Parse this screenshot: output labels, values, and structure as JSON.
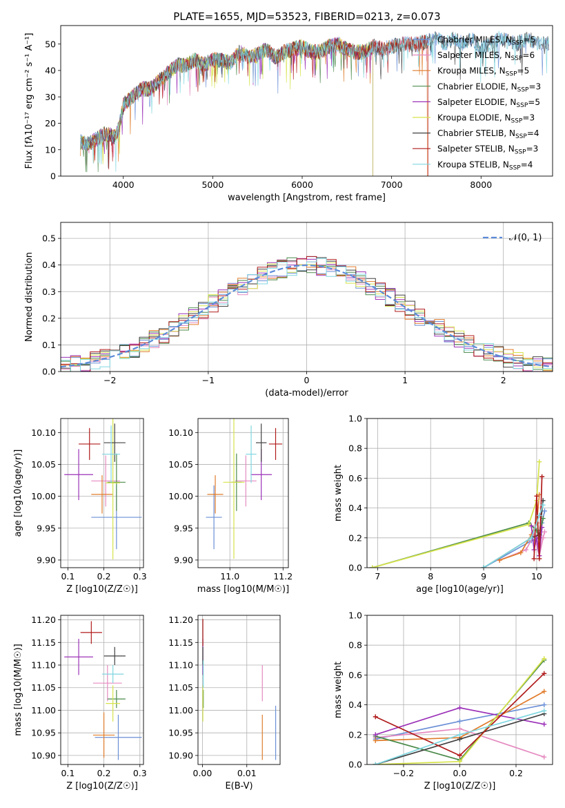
{
  "chart_data": [
    {
      "type": "line",
      "title": "PLATE=1655, MJD=53523, FIBERID=0213, z=0.073",
      "xlabel": "wavelength [Angstrom, rest frame]",
      "ylabel": "Flux [fλ10⁻¹⁷ erg cm⁻² s⁻¹ A⁻¹]",
      "xlim": [
        3300,
        8800
      ],
      "ylim": [
        0,
        57
      ],
      "xticks": [
        "4000",
        "5000",
        "6000",
        "7000",
        "8000"
      ],
      "yticks": [
        "0",
        "10",
        "20",
        "30",
        "40",
        "50"
      ],
      "legend_position": "upper-right",
      "spectrum": {
        "x": [
          3520,
          3600,
          3700,
          3800,
          3900,
          3950,
          4000,
          4100,
          4200,
          4300,
          4400,
          4500,
          4600,
          4700,
          4800,
          4900,
          5000,
          5100,
          5200,
          5300,
          5400,
          5500,
          5600,
          5700,
          5800,
          5900,
          6000,
          6100,
          6200,
          6300,
          6400,
          6500,
          6600,
          6700,
          6800,
          6900,
          7000,
          7100,
          7200,
          7300,
          7400,
          7500,
          7600,
          7700,
          7800,
          7900,
          8000,
          8100,
          8200,
          8300,
          8400,
          8500,
          8600,
          8700,
          8760
        ],
        "y": [
          13,
          12,
          14,
          16,
          15,
          18,
          27,
          30,
          33,
          33,
          36,
          39,
          42,
          42,
          44,
          42,
          44,
          44,
          43,
          47,
          45,
          46,
          48,
          45,
          47,
          48,
          49,
          47,
          47,
          49,
          50,
          48,
          47,
          47,
          49,
          48,
          49,
          50,
          50,
          50,
          51,
          52,
          50,
          52,
          50,
          52,
          48,
          50,
          52,
          51,
          50,
          52,
          51,
          50,
          50
        ]
      },
      "series": [
        {
          "name": "Chabrier MILES, N_SSP=5",
          "color": "#6a8fd6",
          "end_x": 8760
        },
        {
          "name": "Salpeter MILES, N_SSP=6",
          "color": "#e58ac0",
          "end_x": 7400
        },
        {
          "name": "Kroupa MILES, N_SSP=5",
          "color": "#e07b2a",
          "end_x": 7400
        },
        {
          "name": "Chabrier ELODIE, N_SSP=3",
          "color": "#4a8a4a",
          "end_x": 6790
        },
        {
          "name": "Salpeter ELODIE, N_SSP=5",
          "color": "#9b30b8",
          "end_x": 6790
        },
        {
          "name": "Kroupa ELODIE, N_SSP=3",
          "color": "#d6e34a",
          "end_x": 6790
        },
        {
          "name": "Chabrier STELIB, N_SSP=4",
          "color": "#404040",
          "end_x": 8760
        },
        {
          "name": "Salpeter STELIB, N_SSP=3",
          "color": "#b01a1a",
          "end_x": 7410
        },
        {
          "name": "Kroupa STELIB, N_SSP=4",
          "color": "#7fd6e0",
          "end_x": 8760
        }
      ],
      "legend_labels": [
        {
          "base": "Chabrier MILES, N",
          "sub": "SSP",
          "tail": "=5"
        },
        {
          "base": "Salpeter MILES, N",
          "sub": "SSP",
          "tail": "=6"
        },
        {
          "base": "Kroupa MILES, N",
          "sub": "SSP",
          "tail": "=5"
        },
        {
          "base": "Chabrier ELODIE, N",
          "sub": "SSP",
          "tail": "=3"
        },
        {
          "base": "Salpeter ELODIE, N",
          "sub": "SSP",
          "tail": "=5"
        },
        {
          "base": "Kroupa ELODIE, N",
          "sub": "SSP",
          "tail": "=3"
        },
        {
          "base": "Chabrier STELIB, N",
          "sub": "SSP",
          "tail": "=4"
        },
        {
          "base": "Salpeter STELIB, N",
          "sub": "SSP",
          "tail": "=3"
        },
        {
          "base": "Kroupa STELIB, N",
          "sub": "SSP",
          "tail": "=4"
        }
      ]
    },
    {
      "type": "line",
      "xlabel": "(data-model)/error",
      "ylabel": "Normed distribution",
      "xlim": [
        -2.5,
        2.5
      ],
      "ylim": [
        0,
        0.56
      ],
      "xticks": [
        "−2",
        "−1",
        "0",
        "1",
        "2"
      ],
      "yticks": [
        "0.0",
        "0.1",
        "0.2",
        "0.3",
        "0.4",
        "0.5"
      ],
      "grid": true,
      "legend_position": "upper-right",
      "reference_curve": {
        "name": "𝒩(0, 1)",
        "mean": 0,
        "sigma": 1,
        "color": "#5b8ad8",
        "style": "dashed"
      },
      "histogram_note": "9 step histograms (one per model), bin width 0.1, following N(0,1) with scatter"
    },
    {
      "type": "scatter",
      "xlabel": "Z [log10(Z/Z☉)]",
      "ylabel": "age  [log10(age/yr)]",
      "xlim": [
        0.08,
        0.31
      ],
      "ylim": [
        9.888,
        10.122
      ],
      "xticks": [
        "0.1",
        "0.2",
        "0.3"
      ],
      "yticks": [
        "9.90",
        "9.95",
        "10.00",
        "10.05",
        "10.10"
      ],
      "grid": true,
      "points": [
        {
          "x": 0.235,
          "y": 9.967,
          "xerr": 0.07,
          "yerr": 0.05,
          "color": "#6a8fd6"
        },
        {
          "x": 0.205,
          "y": 10.024,
          "xerr": 0.04,
          "yerr": 0.04,
          "color": "#e58ac0"
        },
        {
          "x": 0.195,
          "y": 10.003,
          "xerr": 0.03,
          "yerr": 0.03,
          "color": "#e07b2a"
        },
        {
          "x": 0.235,
          "y": 10.022,
          "xerr": 0.025,
          "yerr": 0.045,
          "color": "#4a8a4a"
        },
        {
          "x": 0.13,
          "y": 10.034,
          "xerr": 0.04,
          "yerr": 0.04,
          "color": "#9b30b8"
        },
        {
          "x": 0.225,
          "y": 10.021,
          "xerr": 0.02,
          "yerr": 0.12,
          "color": "#d6e34a"
        },
        {
          "x": 0.23,
          "y": 10.084,
          "xerr": 0.03,
          "yerr": 0.03,
          "color": "#404040"
        },
        {
          "x": 0.16,
          "y": 10.082,
          "xerr": 0.03,
          "yerr": 0.025,
          "color": "#b01a1a"
        },
        {
          "x": 0.22,
          "y": 10.066,
          "xerr": 0.025,
          "yerr": 0.045,
          "color": "#7fd6e0"
        }
      ]
    },
    {
      "type": "scatter",
      "xlabel": "mass [log10(M/M☉)]",
      "xlim": [
        10.88,
        11.22
      ],
      "ylim": [
        9.888,
        10.122
      ],
      "xticks": [
        "11.0",
        "11.2"
      ],
      "yticks": [
        "9.90",
        "9.95",
        "10.00",
        "10.05",
        "10.10"
      ],
      "grid": true,
      "points": [
        {
          "x": 10.94,
          "y": 9.967,
          "xerr": 0.03,
          "yerr": 0.05,
          "color": "#6a8fd6"
        },
        {
          "x": 11.06,
          "y": 10.024,
          "xerr": 0.04,
          "yerr": 0.04,
          "color": "#e58ac0"
        },
        {
          "x": 10.945,
          "y": 10.003,
          "xerr": 0.03,
          "yerr": 0.03,
          "color": "#e07b2a"
        },
        {
          "x": 11.025,
          "y": 10.022,
          "xerr": 0.02,
          "yerr": 0.045,
          "color": "#4a8a4a"
        },
        {
          "x": 11.118,
          "y": 10.034,
          "xerr": 0.04,
          "yerr": 0.04,
          "color": "#9b30b8"
        },
        {
          "x": 11.015,
          "y": 10.022,
          "xerr": 0.04,
          "yerr": 0.12,
          "color": "#d6e34a"
        },
        {
          "x": 11.118,
          "y": 10.084,
          "xerr": 0.02,
          "yerr": 0.03,
          "color": "#404040"
        },
        {
          "x": 11.172,
          "y": 10.082,
          "xerr": 0.025,
          "yerr": 0.025,
          "color": "#b01a1a"
        },
        {
          "x": 11.08,
          "y": 10.066,
          "xerr": 0.02,
          "yerr": 0.045,
          "color": "#7fd6e0"
        }
      ]
    },
    {
      "type": "line",
      "xlabel": "age  [log10(age/yr)]",
      "ylabel": "mass weight",
      "xlim": [
        6.8,
        10.3
      ],
      "ylim": [
        0,
        1
      ],
      "xticks": [
        "7",
        "8",
        "9",
        "10"
      ],
      "yticks": [
        "0.0",
        "0.2",
        "0.4",
        "0.6",
        "0.8",
        "1.0"
      ],
      "grid": true,
      "series": [
        {
          "color": "#6a8fd6",
          "x": [
            9.0,
            9.9,
            10.05,
            10.1,
            10.15
          ],
          "y": [
            0.0,
            0.18,
            0.2,
            0.3,
            0.38
          ]
        },
        {
          "color": "#e58ac0",
          "x": [
            9.3,
            9.8,
            9.95,
            10.05,
            10.12,
            10.15
          ],
          "y": [
            0.05,
            0.12,
            0.22,
            0.08,
            0.2,
            0.24
          ]
        },
        {
          "color": "#e07b2a",
          "x": [
            9.3,
            9.7,
            9.9,
            10.0,
            10.05
          ],
          "y": [
            0.05,
            0.1,
            0.22,
            0.3,
            0.49
          ]
        },
        {
          "color": "#4a8a4a",
          "x": [
            6.9,
            9.85,
            10.0,
            10.05,
            10.12
          ],
          "y": [
            0.0,
            0.3,
            0.25,
            0.2,
            0.33
          ]
        },
        {
          "color": "#9b30b8",
          "x": [
            9.9,
            9.95,
            10.0,
            10.05,
            10.1
          ],
          "y": [
            0.28,
            0.12,
            0.2,
            0.08,
            0.27
          ]
        },
        {
          "color": "#d6e34a",
          "x": [
            6.9,
            9.85,
            10.0,
            10.05
          ],
          "y": [
            0.0,
            0.29,
            0.45,
            0.71
          ]
        },
        {
          "color": "#404040",
          "x": [
            9.0,
            9.9,
            10.05,
            10.12
          ],
          "y": [
            0.0,
            0.2,
            0.22,
            0.45
          ]
        },
        {
          "color": "#b01a1a",
          "x": [
            9.95,
            10.0,
            10.05,
            10.1
          ],
          "y": [
            0.06,
            0.48,
            0.06,
            0.61
          ]
        },
        {
          "color": "#7fd6e0",
          "x": [
            9.0,
            9.9,
            10.05,
            10.12
          ],
          "y": [
            0.0,
            0.2,
            0.35,
            0.42
          ]
        }
      ]
    },
    {
      "type": "scatter",
      "xlabel": "Z [log10(Z/Z☉)]",
      "ylabel": "mass [log10(M/M☉)]",
      "xlim": [
        0.08,
        0.31
      ],
      "ylim": [
        10.88,
        11.21
      ],
      "xticks": [
        "0.1",
        "0.2",
        "0.3"
      ],
      "yticks": [
        "10.90",
        "10.95",
        "11.00",
        "11.05",
        "11.10",
        "11.15",
        "11.20"
      ],
      "grid": true,
      "points": [
        {
          "x": 0.24,
          "y": 10.94,
          "xerr": 0.065,
          "yerr": 0.05,
          "color": "#6a8fd6"
        },
        {
          "x": 0.21,
          "y": 11.06,
          "xerr": 0.04,
          "yerr": 0.04,
          "color": "#e58ac0"
        },
        {
          "x": 0.2,
          "y": 10.945,
          "xerr": 0.03,
          "yerr": 0.05,
          "color": "#e07b2a"
        },
        {
          "x": 0.235,
          "y": 11.025,
          "xerr": 0.025,
          "yerr": 0.02,
          "color": "#4a8a4a"
        },
        {
          "x": 0.13,
          "y": 11.118,
          "xerr": 0.04,
          "yerr": 0.04,
          "color": "#9b30b8"
        },
        {
          "x": 0.225,
          "y": 11.015,
          "xerr": 0.02,
          "yerr": 0.04,
          "color": "#d6e34a"
        },
        {
          "x": 0.23,
          "y": 11.12,
          "xerr": 0.03,
          "yerr": 0.02,
          "color": "#404040"
        },
        {
          "x": 0.165,
          "y": 11.172,
          "xerr": 0.03,
          "yerr": 0.025,
          "color": "#b01a1a"
        },
        {
          "x": 0.225,
          "y": 11.08,
          "xerr": 0.03,
          "yerr": 0.02,
          "color": "#7fd6e0"
        }
      ]
    },
    {
      "type": "scatter",
      "xlabel": "E(B-V)",
      "xlim": [
        -0.001,
        0.0175
      ],
      "ylim": [
        10.88,
        11.21
      ],
      "xticks": [
        "0.00",
        "0.01"
      ],
      "yticks": [
        "10.90",
        "10.95",
        "11.00",
        "11.05",
        "11.10",
        "11.15",
        "11.20"
      ],
      "grid": true,
      "points": [
        {
          "x": 0.0165,
          "y": 10.95,
          "yerr": 0.06,
          "color": "#6a8fd6"
        },
        {
          "x": 0.0135,
          "y": 11.06,
          "yerr": 0.04,
          "color": "#e58ac0"
        },
        {
          "x": 0.0135,
          "y": 10.94,
          "yerr": 0.05,
          "color": "#e07b2a"
        },
        {
          "x": 0.0002,
          "y": 11.025,
          "yerr": 0.02,
          "color": "#4a8a4a"
        },
        {
          "x": 0.0001,
          "y": 11.118,
          "yerr": 0.04,
          "color": "#9b30b8"
        },
        {
          "x": 0.0001,
          "y": 11.015,
          "yerr": 0.04,
          "color": "#d6e34a"
        },
        {
          "x": 0.0001,
          "y": 11.12,
          "yerr": 0.02,
          "color": "#404040"
        },
        {
          "x": 0.0001,
          "y": 11.172,
          "yerr": 0.03,
          "color": "#b01a1a"
        },
        {
          "x": 0.0002,
          "y": 11.08,
          "yerr": 0.03,
          "color": "#7fd6e0"
        }
      ]
    },
    {
      "type": "line",
      "xlabel": "Z [log10(Z/Z☉)]",
      "ylabel": "mass weight",
      "xlim": [
        -0.33,
        0.33
      ],
      "ylim": [
        0,
        1
      ],
      "xticks": [
        "−0.2",
        "0.0",
        "0.2"
      ],
      "yticks": [
        "0.0",
        "0.2",
        "0.4",
        "0.6",
        "0.8",
        "1.0"
      ],
      "grid": true,
      "series": [
        {
          "color": "#6a8fd6",
          "x": [
            -0.3,
            0.0,
            0.3
          ],
          "y": [
            0.17,
            0.29,
            0.4
          ]
        },
        {
          "color": "#e58ac0",
          "x": [
            -0.3,
            0.0,
            0.3
          ],
          "y": [
            0.18,
            0.24,
            0.05
          ]
        },
        {
          "color": "#e07b2a",
          "x": [
            -0.3,
            0.0,
            0.3
          ],
          "y": [
            0.16,
            0.18,
            0.49
          ]
        },
        {
          "color": "#4a8a4a",
          "x": [
            -0.3,
            0.0,
            0.3
          ],
          "y": [
            0.19,
            0.03,
            0.7
          ]
        },
        {
          "color": "#9b30b8",
          "x": [
            -0.3,
            0.0,
            0.3
          ],
          "y": [
            0.2,
            0.38,
            0.27
          ]
        },
        {
          "color": "#d6e34a",
          "x": [
            -0.3,
            0.0,
            0.3
          ],
          "y": [
            0.0,
            0.02,
            0.71
          ]
        },
        {
          "color": "#404040",
          "x": [
            -0.3,
            0.0,
            0.3
          ],
          "y": [
            0.0,
            0.17,
            0.34
          ]
        },
        {
          "color": "#b01a1a",
          "x": [
            -0.3,
            0.0,
            0.3
          ],
          "y": [
            0.32,
            0.06,
            0.61
          ]
        },
        {
          "color": "#7fd6e0",
          "x": [
            -0.3,
            0.0,
            0.3
          ],
          "y": [
            0.0,
            0.2,
            0.36
          ]
        }
      ]
    }
  ]
}
